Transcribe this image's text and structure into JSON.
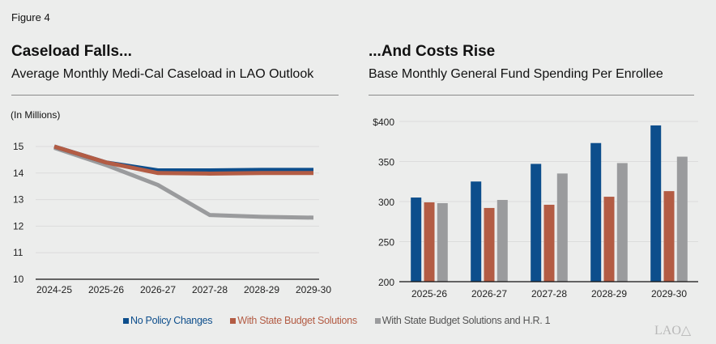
{
  "figure_label": "Figure 4",
  "colors": {
    "no_policy": "#0d4e8c",
    "state_budget": "#b35c44",
    "hr1": "#9a9b9d"
  },
  "legend": [
    "No Policy Changes",
    "With State Budget Solutions",
    "With State Budget Solutions and H.R. 1"
  ],
  "logo_text": "LAO",
  "chart_data": [
    {
      "type": "line",
      "title": "Caseload Falls...",
      "subtitle": "Average Monthly Medi-Cal Caseload in LAO Outlook",
      "ylabel": "(In Millions)",
      "categories": [
        "2024-25",
        "2025-26",
        "2026-27",
        "2027-28",
        "2028-29",
        "2029-30"
      ],
      "ylim": [
        10,
        15
      ],
      "yticks": [
        "10",
        "11",
        "12",
        "13",
        "14",
        "15"
      ],
      "grid": true,
      "series": [
        {
          "name": "No Policy Changes",
          "values": [
            15.0,
            14.4,
            14.1,
            14.1,
            14.12,
            14.12
          ]
        },
        {
          "name": "With State Budget Solutions",
          "values": [
            15.0,
            14.4,
            14.0,
            13.98,
            14.0,
            14.0
          ]
        },
        {
          "name": "With State Budget Solutions and H.R. 1",
          "values": [
            14.95,
            14.3,
            13.55,
            12.42,
            12.35,
            12.32
          ]
        }
      ]
    },
    {
      "type": "bar",
      "title": "...And Costs Rise",
      "subtitle": "Base Monthly General Fund Spending Per Enrollee",
      "categories": [
        "2025-26",
        "2026-27",
        "2027-28",
        "2028-29",
        "2029-30"
      ],
      "ylim": [
        200,
        400
      ],
      "yticks": [
        "200",
        "250",
        "300",
        "350",
        "$400"
      ],
      "grid": true,
      "series": [
        {
          "name": "No Policy Changes",
          "values": [
            305,
            325,
            347,
            373,
            395
          ]
        },
        {
          "name": "With State Budget Solutions",
          "values": [
            299,
            292,
            296,
            306,
            313
          ]
        },
        {
          "name": "With State Budget Solutions and H.R. 1",
          "values": [
            298,
            302,
            335,
            348,
            356
          ]
        }
      ]
    }
  ]
}
